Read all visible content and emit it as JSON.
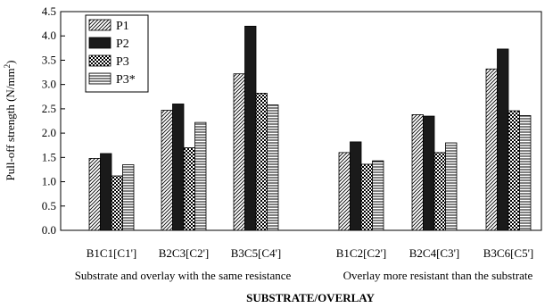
{
  "chart_data": {
    "type": "bar",
    "title": "",
    "xlabel": "SUBSTRATE/OVERLAY",
    "ylabel_main": "Pull-off strength (N/mm",
    "ylabel_sup": "2",
    "ylabel_close": ")",
    "ylim": [
      0,
      4.5
    ],
    "yticks": [
      "0.0",
      "0.5",
      "1.0",
      "1.5",
      "2.0",
      "2.5",
      "3.0",
      "3.5",
      "4.0",
      "4.5"
    ],
    "categories": [
      "B1C1[C1']",
      "B2C3[C2']",
      "B3C5[C4']",
      "B1C2[C2']",
      "B2C4[C3']",
      "B3C6[C5']"
    ],
    "groups": [
      {
        "label": "Substrate and overlay with the same resistance",
        "categories": [
          0,
          1,
          2
        ]
      },
      {
        "label": "Overlay more resistant than the substrate",
        "categories": [
          3,
          4,
          5
        ]
      }
    ],
    "series": [
      {
        "name": "P1",
        "values": [
          1.48,
          2.47,
          3.22,
          1.6,
          2.38,
          3.32
        ]
      },
      {
        "name": "P2",
        "values": [
          1.58,
          2.6,
          4.2,
          1.82,
          2.35,
          3.73
        ]
      },
      {
        "name": "P3",
        "values": [
          1.12,
          1.7,
          2.82,
          1.36,
          1.6,
          2.46
        ]
      },
      {
        "name": "P3*",
        "values": [
          1.35,
          2.22,
          2.58,
          1.43,
          1.8,
          2.36
        ]
      }
    ],
    "legend_position": "top-left",
    "grid": false
  }
}
